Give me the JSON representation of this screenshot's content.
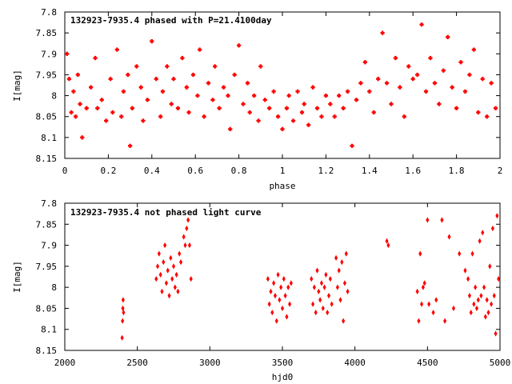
{
  "chart_data": [
    {
      "type": "scatter",
      "title": "132923-7935.4 phased with P=21.4100day",
      "xlabel": "phase",
      "ylabel": "I[mag]",
      "xlim": [
        0,
        2
      ],
      "ylim": [
        8.15,
        7.8
      ],
      "y_inverted": true,
      "grid": false,
      "marker": "plus",
      "color": "#ff0000",
      "x_ticks": [
        "0",
        "0.2",
        "0.4",
        "0.6",
        "0.8",
        "1",
        "1.2",
        "1.4",
        "1.6",
        "1.8",
        "2"
      ],
      "y_ticks": [
        "7.8",
        "7.85",
        "7.9",
        "7.95",
        "8",
        "8.05",
        "8.1",
        "8.15"
      ],
      "series": [
        {
          "points": [
            [
              0.01,
              7.9
            ],
            [
              0.02,
              7.96
            ],
            [
              0.03,
              8.04
            ],
            [
              0.04,
              7.99
            ],
            [
              0.05,
              8.05
            ],
            [
              0.06,
              7.95
            ],
            [
              0.07,
              8.02
            ],
            [
              0.08,
              8.1
            ],
            [
              0.1,
              8.03
            ],
            [
              0.12,
              7.98
            ],
            [
              0.14,
              7.91
            ],
            [
              0.15,
              8.03
            ],
            [
              0.17,
              8.01
            ],
            [
              0.19,
              8.06
            ],
            [
              0.21,
              7.96
            ],
            [
              0.22,
              8.04
            ],
            [
              0.24,
              7.89
            ],
            [
              0.26,
              8.05
            ],
            [
              0.27,
              7.99
            ],
            [
              0.29,
              7.95
            ],
            [
              0.3,
              8.12
            ],
            [
              0.31,
              8.03
            ],
            [
              0.33,
              7.93
            ],
            [
              0.35,
              7.98
            ],
            [
              0.36,
              8.06
            ],
            [
              0.38,
              8.01
            ],
            [
              0.4,
              7.87
            ],
            [
              0.42,
              7.96
            ],
            [
              0.44,
              8.05
            ],
            [
              0.45,
              7.99
            ],
            [
              0.47,
              7.93
            ],
            [
              0.49,
              8.02
            ],
            [
              0.5,
              7.96
            ],
            [
              0.52,
              8.03
            ],
            [
              0.54,
              7.91
            ],
            [
              0.56,
              7.98
            ],
            [
              0.57,
              8.04
            ],
            [
              0.59,
              7.95
            ],
            [
              0.61,
              8.0
            ],
            [
              0.62,
              7.89
            ],
            [
              0.64,
              8.05
            ],
            [
              0.66,
              7.97
            ],
            [
              0.68,
              8.01
            ],
            [
              0.69,
              7.93
            ],
            [
              0.71,
              8.03
            ],
            [
              0.73,
              7.98
            ],
            [
              0.75,
              8.0
            ],
            [
              0.76,
              8.08
            ],
            [
              0.78,
              7.95
            ],
            [
              0.8,
              7.88
            ],
            [
              0.82,
              8.02
            ],
            [
              0.84,
              7.97
            ],
            [
              0.85,
              8.04
            ],
            [
              0.87,
              8.0
            ],
            [
              0.89,
              8.06
            ],
            [
              0.9,
              7.93
            ],
            [
              0.92,
              8.01
            ],
            [
              0.94,
              8.03
            ],
            [
              0.96,
              7.99
            ],
            [
              0.98,
              8.05
            ],
            [
              1.0,
              8.08
            ],
            [
              1.02,
              8.03
            ],
            [
              1.03,
              8.0
            ],
            [
              1.05,
              8.06
            ],
            [
              1.07,
              7.99
            ],
            [
              1.09,
              8.04
            ],
            [
              1.1,
              8.02
            ],
            [
              1.12,
              8.07
            ],
            [
              1.14,
              7.98
            ],
            [
              1.16,
              8.03
            ],
            [
              1.18,
              8.05
            ],
            [
              1.2,
              8.0
            ],
            [
              1.22,
              8.02
            ],
            [
              1.24,
              8.05
            ],
            [
              1.26,
              8.0
            ],
            [
              1.28,
              8.03
            ],
            [
              1.3,
              7.99
            ],
            [
              1.32,
              8.12
            ],
            [
              1.34,
              8.01
            ],
            [
              1.36,
              7.97
            ],
            [
              1.38,
              7.92
            ],
            [
              1.4,
              7.99
            ],
            [
              1.42,
              8.04
            ],
            [
              1.44,
              7.96
            ],
            [
              1.46,
              7.85
            ],
            [
              1.48,
              7.97
            ],
            [
              1.5,
              8.02
            ],
            [
              1.52,
              7.91
            ],
            [
              1.54,
              7.98
            ],
            [
              1.56,
              8.05
            ],
            [
              1.58,
              7.93
            ],
            [
              1.6,
              7.96
            ],
            [
              1.62,
              7.95
            ],
            [
              1.64,
              7.83
            ],
            [
              1.66,
              7.99
            ],
            [
              1.68,
              7.91
            ],
            [
              1.7,
              7.97
            ],
            [
              1.72,
              8.02
            ],
            [
              1.74,
              7.94
            ],
            [
              1.76,
              7.86
            ],
            [
              1.78,
              7.98
            ],
            [
              1.8,
              8.03
            ],
            [
              1.82,
              7.92
            ],
            [
              1.84,
              7.99
            ],
            [
              1.86,
              7.95
            ],
            [
              1.88,
              7.89
            ],
            [
              1.9,
              8.04
            ],
            [
              1.92,
              7.96
            ],
            [
              1.94,
              8.05
            ],
            [
              1.96,
              7.97
            ],
            [
              1.98,
              8.03
            ]
          ]
        }
      ]
    },
    {
      "type": "scatter",
      "title": "132923-7935.4 not phased light curve",
      "xlabel": "hjd0",
      "ylabel": "I[mag]",
      "xlim": [
        2000,
        5000
      ],
      "ylim": [
        8.15,
        7.8
      ],
      "y_inverted": true,
      "grid": false,
      "marker": "diamond",
      "color": "#ff0000",
      "x_ticks": [
        "2000",
        "2500",
        "3000",
        "3500",
        "4000",
        "4500",
        "5000"
      ],
      "y_ticks": [
        "7.8",
        "7.85",
        "7.9",
        "7.95",
        "8",
        "8.05",
        "8.1",
        "8.15"
      ],
      "series": [
        {
          "points": [
            [
              2395,
              8.12
            ],
            [
              2398,
              8.08
            ],
            [
              2400,
              8.05
            ],
            [
              2402,
              8.03
            ],
            [
              2405,
              8.06
            ],
            [
              2630,
              7.98
            ],
            [
              2640,
              7.95
            ],
            [
              2650,
              7.92
            ],
            [
              2660,
              7.97
            ],
            [
              2670,
              8.01
            ],
            [
              2680,
              7.94
            ],
            [
              2690,
              7.9
            ],
            [
              2700,
              7.99
            ],
            [
              2710,
              7.96
            ],
            [
              2720,
              8.02
            ],
            [
              2730,
              7.93
            ],
            [
              2740,
              7.98
            ],
            [
              2750,
              7.95
            ],
            [
              2760,
              8.0
            ],
            [
              2770,
              7.97
            ],
            [
              2780,
              8.01
            ],
            [
              2790,
              7.92
            ],
            [
              2800,
              7.94
            ],
            [
              2820,
              7.88
            ],
            [
              2830,
              7.9
            ],
            [
              2840,
              7.86
            ],
            [
              2850,
              7.84
            ],
            [
              2860,
              7.9
            ],
            [
              2870,
              7.98
            ],
            [
              3400,
              7.98
            ],
            [
              3410,
              8.04
            ],
            [
              3420,
              8.01
            ],
            [
              3430,
              8.06
            ],
            [
              3440,
              7.99
            ],
            [
              3450,
              8.02
            ],
            [
              3460,
              8.08
            ],
            [
              3470,
              7.97
            ],
            [
              3480,
              8.03
            ],
            [
              3490,
              8.0
            ],
            [
              3500,
              8.05
            ],
            [
              3510,
              7.98
            ],
            [
              3520,
              8.02
            ],
            [
              3530,
              8.07
            ],
            [
              3540,
              8.0
            ],
            [
              3550,
              8.04
            ],
            [
              3560,
              7.99
            ],
            [
              3700,
              7.98
            ],
            [
              3710,
              8.04
            ],
            [
              3720,
              8.0
            ],
            [
              3730,
              8.06
            ],
            [
              3740,
              7.96
            ],
            [
              3750,
              8.01
            ],
            [
              3760,
              8.03
            ],
            [
              3770,
              7.99
            ],
            [
              3780,
              8.05
            ],
            [
              3790,
              8.0
            ],
            [
              3800,
              7.97
            ],
            [
              3810,
              8.06
            ],
            [
              3820,
              8.02
            ],
            [
              3830,
              7.98
            ],
            [
              3840,
              8.04
            ],
            [
              3870,
              7.93
            ],
            [
              3880,
              8.0
            ],
            [
              3890,
              7.96
            ],
            [
              3900,
              8.03
            ],
            [
              3910,
              7.94
            ],
            [
              3920,
              8.08
            ],
            [
              3930,
              7.99
            ],
            [
              3940,
              7.92
            ],
            [
              3950,
              8.01
            ],
            [
              4220,
              7.89
            ],
            [
              4230,
              7.9
            ],
            [
              4430,
              8.01
            ],
            [
              4440,
              8.08
            ],
            [
              4450,
              7.92
            ],
            [
              4460,
              8.04
            ],
            [
              4470,
              8.0
            ],
            [
              4480,
              7.99
            ],
            [
              4500,
              7.84
            ],
            [
              4510,
              8.04
            ],
            [
              4540,
              8.06
            ],
            [
              4560,
              8.03
            ],
            [
              4600,
              7.84
            ],
            [
              4620,
              8.08
            ],
            [
              4650,
              7.88
            ],
            [
              4680,
              8.05
            ],
            [
              4720,
              7.92
            ],
            [
              4760,
              7.96
            ],
            [
              4780,
              7.98
            ],
            [
              4790,
              8.02
            ],
            [
              4800,
              8.06
            ],
            [
              4810,
              7.92
            ],
            [
              4820,
              8.04
            ],
            [
              4830,
              8.0
            ],
            [
              4840,
              8.05
            ],
            [
              4850,
              8.03
            ],
            [
              4860,
              7.89
            ],
            [
              4870,
              8.02
            ],
            [
              4880,
              7.87
            ],
            [
              4890,
              8.0
            ],
            [
              4900,
              8.07
            ],
            [
              4910,
              8.03
            ],
            [
              4920,
              8.06
            ],
            [
              4930,
              7.95
            ],
            [
              4940,
              8.04
            ],
            [
              4950,
              7.86
            ],
            [
              4960,
              8.02
            ],
            [
              4970,
              8.11
            ],
            [
              4980,
              7.83
            ],
            [
              4990,
              7.98
            ]
          ]
        }
      ]
    }
  ]
}
